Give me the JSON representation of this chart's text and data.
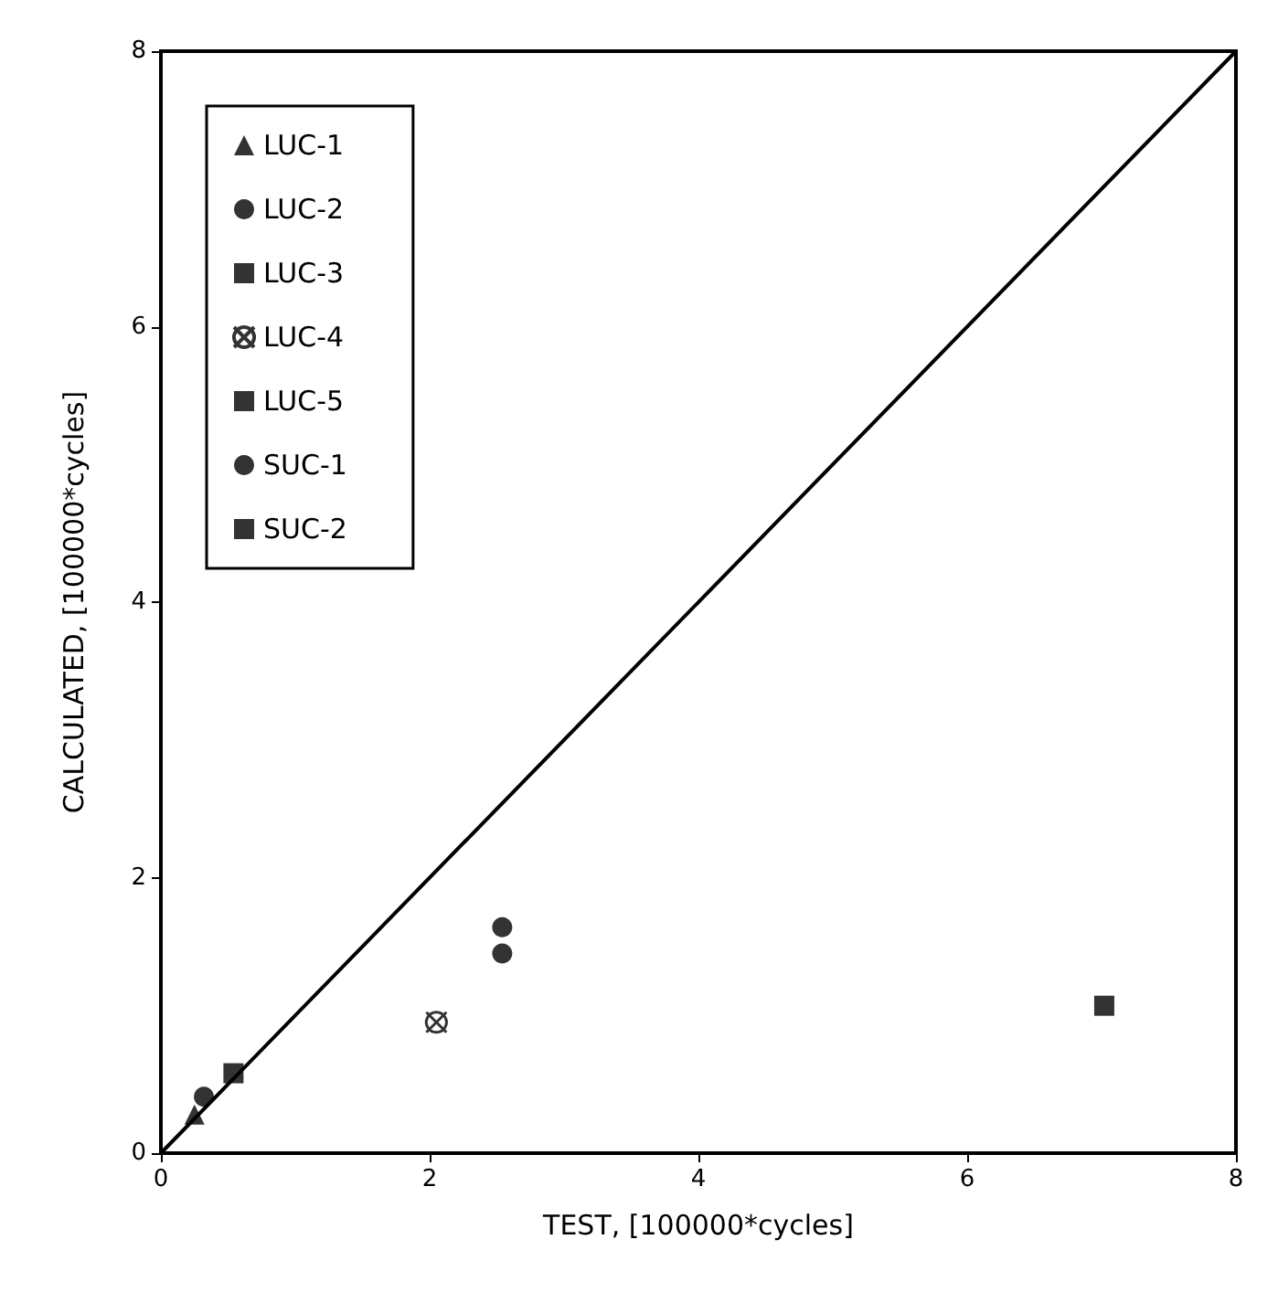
{
  "chart_data": {
    "type": "scatter",
    "xlabel": "TEST, [100000*cycles]",
    "ylabel": "CALCULATED, [100000*cycles]",
    "xlim": [
      0,
      8
    ],
    "ylim": [
      0,
      8
    ],
    "xticks": [
      0,
      2,
      4,
      6,
      8
    ],
    "yticks": [
      0,
      2,
      4,
      6,
      8
    ],
    "grid": false,
    "legend": "top left",
    "series": [
      {
        "name": "LUC-1",
        "color": "#000000",
        "marker": "triangle",
        "x": [
          0.25
        ],
        "values": [
          0.28
        ]
      },
      {
        "name": "LUC-2",
        "color": "#000000",
        "marker": "circle",
        "x": [
          0.32,
          2.54
        ],
        "values": [
          0.41,
          1.64
        ]
      },
      {
        "name": "LUC-3",
        "color": "#000000",
        "marker": "square",
        "x": [
          0.54
        ],
        "values": [
          0.58
        ]
      },
      {
        "name": "LUC-4",
        "color": "#000000",
        "marker": "cross",
        "x": [
          2.05
        ],
        "values": [
          0.95
        ]
      },
      {
        "name": "LUC-5",
        "color": "#000000",
        "marker": "square"
      },
      {
        "name": "SUC-1",
        "color": "#000000",
        "marker": "circle",
        "x": [
          2.54
        ],
        "values": [
          1.45
        ]
      },
      {
        "name": "SUC-2",
        "color": "#000000",
        "marker": "square",
        "x": [
          7.02
        ],
        "values": [
          1.07
        ]
      },
      {
        "type": "line",
        "color": "#000000",
        "marker": "none",
        "line_style": "solid",
        "x": [
          0,
          8
        ],
        "values": [
          0,
          8
        ]
      }
    ]
  }
}
